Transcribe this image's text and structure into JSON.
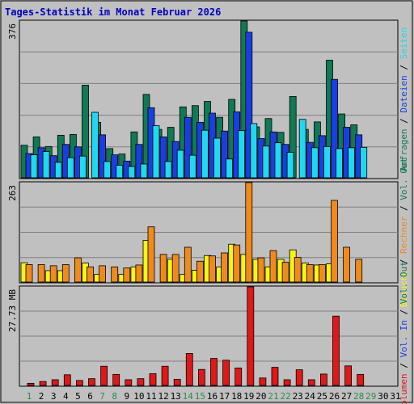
{
  "title": "Tages-Statistik im Monat Februar 2026",
  "colors": {
    "background": "#c0c0c0",
    "title": "#0000c0",
    "grid": "#808080",
    "axis_text": "#000000",
    "weekend_day": "#2d8a4e",
    "anfragen": "#0f7a55",
    "dateien": "#1a3fe0",
    "seiten": "#20d8f0",
    "besuche": "#f5f516",
    "rechner": "#f08a1c",
    "volumen": "#e01818"
  },
  "chart_data": [
    {
      "type": "bar",
      "panel": "requests",
      "categories": [
        "1",
        "2",
        "3",
        "4",
        "5",
        "6",
        "7",
        "8",
        "9",
        "10",
        "11",
        "12",
        "13",
        "14",
        "15",
        "16",
        "17",
        "18",
        "19",
        "20",
        "21",
        "22",
        "23",
        "24",
        "25",
        "26",
        "27",
        "28",
        "29",
        "30",
        "31"
      ],
      "ymax_label": "376",
      "ylim": [
        0,
        376
      ],
      "series": [
        {
          "name": "Anfragen",
          "color_key": "anfragen",
          "values": [
            78,
            98,
            75,
            102,
            104,
            222,
            133,
            70,
            57,
            110,
            200,
            116,
            121,
            170,
            173,
            183,
            145,
            188,
            376,
            122,
            142,
            109,
            195,
            116,
            134,
            282,
            153,
            127,
            null,
            null,
            null
          ]
        },
        {
          "name": "Dateien",
          "color_key": "dateien",
          "values": [
            58,
            72,
            53,
            80,
            74,
            0,
            103,
            55,
            40,
            80,
            168,
            98,
            87,
            145,
            133,
            155,
            112,
            158,
            349,
            94,
            110,
            80,
            0,
            85,
            101,
            236,
            121,
            103,
            null,
            null,
            null
          ]
        },
        {
          "name": "Seiten",
          "color_key": "seiten",
          "values": [
            55,
            63,
            37,
            48,
            52,
            157,
            39,
            30,
            27,
            33,
            125,
            39,
            66,
            54,
            114,
            95,
            45,
            113,
            130,
            76,
            84,
            61,
            140,
            72,
            75,
            70,
            72,
            73,
            null,
            null,
            null
          ]
        }
      ],
      "axis_label_right": {
        "parts": [
          {
            "text": "Anfragen",
            "color_key": "anfragen"
          },
          {
            "text": " / ",
            "color_key": "axis_text"
          },
          {
            "text": "Dateien",
            "color_key": "dateien"
          },
          {
            "text": " / ",
            "color_key": "axis_text"
          },
          {
            "text": "Seiten",
            "color_key": "seiten"
          }
        ]
      }
    },
    {
      "type": "bar",
      "panel": "visits",
      "categories": [
        "1",
        "2",
        "3",
        "4",
        "5",
        "6",
        "7",
        "8",
        "9",
        "10",
        "11",
        "12",
        "13",
        "14",
        "15",
        "16",
        "17",
        "18",
        "19",
        "20",
        "21",
        "22",
        "23",
        "24",
        "25",
        "26",
        "27",
        "28",
        "29",
        "30",
        "31"
      ],
      "ymax_label": "263",
      "ylim": [
        0,
        263
      ],
      "series": [
        {
          "name": "Besuche",
          "color_key": "besuche",
          "values": [
            51,
            0,
            30,
            30,
            0,
            50,
            20,
            0,
            20,
            40,
            110,
            0,
            60,
            20,
            31,
            70,
            40,
            100,
            73,
            60,
            40,
            60,
            85,
            50,
            45,
            48,
            0,
            0,
            null,
            null,
            null
          ]
        },
        {
          "name": "Rechner",
          "color_key": "rechner",
          "values": [
            46,
            46,
            43,
            46,
            64,
            40,
            43,
            40,
            37,
            45,
            146,
            73,
            73,
            92,
            55,
            69,
            77,
            98,
            263,
            64,
            83,
            52,
            65,
            46,
            46,
            216,
            92,
            60,
            null,
            null,
            null
          ]
        }
      ],
      "axis_label_right": {
        "parts": [
          {
            "text": "Besuche",
            "color_key": "besuche"
          },
          {
            "text": " / ",
            "color_key": "axis_text"
          },
          {
            "text": "Rechner",
            "color_key": "rechner"
          },
          {
            "text": " / ",
            "color_key": "axis_text"
          },
          {
            "text": "Vol. Out",
            "color_key": "anfragen"
          }
        ]
      }
    },
    {
      "type": "bar",
      "panel": "volume",
      "unit": "MB",
      "categories": [
        "1",
        "2",
        "3",
        "4",
        "5",
        "6",
        "7",
        "8",
        "9",
        "10",
        "11",
        "12",
        "13",
        "14",
        "15",
        "16",
        "17",
        "18",
        "19",
        "20",
        "21",
        "22",
        "23",
        "24",
        "25",
        "26",
        "27",
        "28",
        "29",
        "30",
        "31"
      ],
      "ymax_label": "27.73 MB",
      "ylim": [
        0,
        27.73
      ],
      "series": [
        {
          "name": "Volumen",
          "color_key": "volumen",
          "values": [
            0.6,
            1.1,
            1.6,
            3.0,
            1.4,
            1.9,
            5.4,
            3.1,
            1.6,
            1.9,
            3.3,
            5.4,
            1.7,
            9.0,
            4.5,
            7.6,
            7.1,
            4.9,
            27.73,
            2.1,
            5.1,
            1.6,
            4.4,
            1.6,
            3.2,
            19.5,
            5.5,
            3.1,
            null,
            null,
            null
          ]
        }
      ],
      "axis_label_right": {
        "parts": [
          {
            "text": "Volumen",
            "color_key": "volumen"
          },
          {
            "text": " / ",
            "color_key": "axis_text"
          },
          {
            "text": "Vol. In",
            "color_key": "dateien"
          },
          {
            "text": " / ",
            "color_key": "axis_text"
          },
          {
            "text": "Vol. Out",
            "color_key": "anfragen"
          }
        ]
      }
    }
  ],
  "weekend_days": [
    "1",
    "7",
    "8",
    "14",
    "15",
    "21",
    "22",
    "28",
    "29"
  ]
}
